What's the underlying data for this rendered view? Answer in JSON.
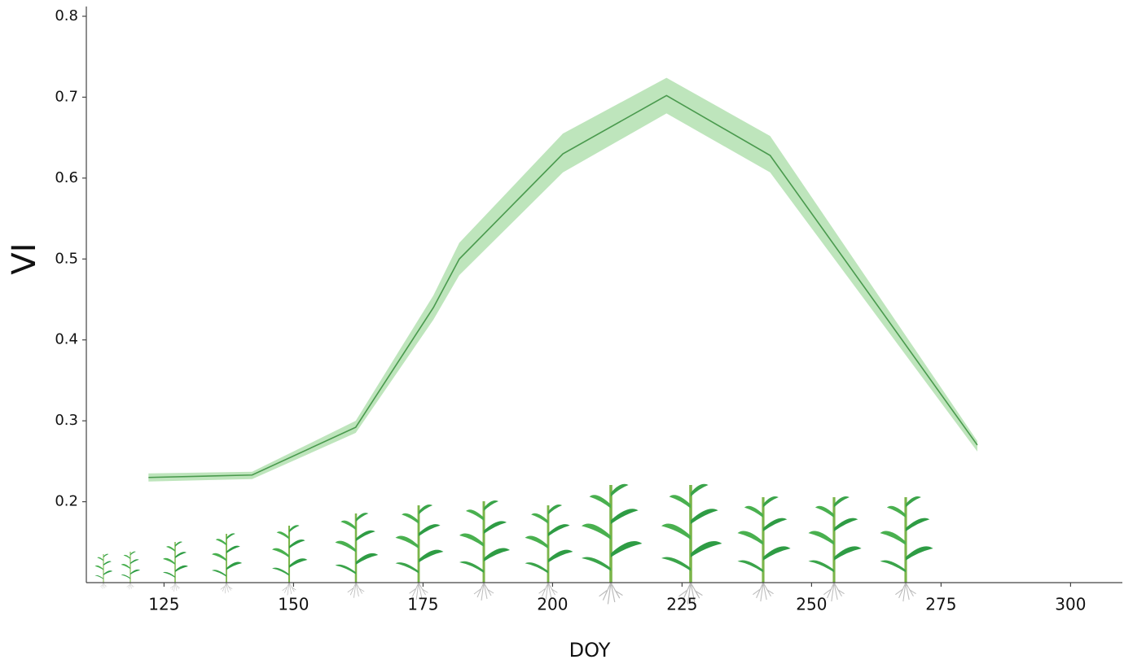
{
  "chart_data": {
    "type": "line",
    "x_label": "DOY",
    "y_label": "VI",
    "x": [
      122,
      142,
      162,
      177,
      182,
      202,
      222,
      242,
      282
    ],
    "values": [
      0.23,
      0.233,
      0.292,
      0.44,
      0.5,
      0.63,
      0.702,
      0.628,
      0.27
    ],
    "upper": [
      0.235,
      0.237,
      0.3,
      0.455,
      0.52,
      0.655,
      0.724,
      0.652,
      0.275
    ],
    "lower": [
      0.225,
      0.228,
      0.285,
      0.425,
      0.48,
      0.607,
      0.68,
      0.607,
      0.262
    ],
    "color": "#4a9a4e",
    "band_color": "#a8dca6",
    "xlim": [
      110,
      310
    ],
    "ylim": [
      0.1,
      0.8
    ],
    "xticks": [
      125,
      150,
      175,
      200,
      225,
      250,
      275,
      300
    ],
    "yticks": [
      0.2,
      0.3,
      0.4,
      0.5,
      0.6,
      0.7,
      0.8
    ]
  }
}
